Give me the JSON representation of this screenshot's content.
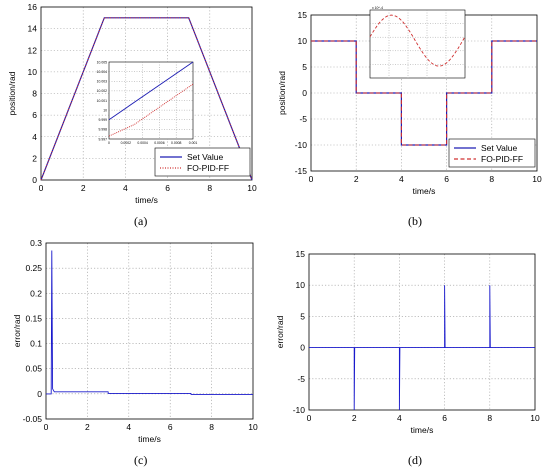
{
  "captions": [
    "(a)",
    "(b)",
    "(c)",
    "(d)"
  ],
  "colors": {
    "set_value": "#1f1fb4",
    "fopid": "#d03030",
    "error": "#1a1acc",
    "grid": "#9a9a9a"
  },
  "chart_data": [
    {
      "type": "line",
      "xlabel": "time/s",
      "ylabel": "position/rad",
      "xlim": [
        0,
        10
      ],
      "ylim": [
        0,
        16
      ],
      "xticks": [
        "0",
        "2",
        "4",
        "6",
        "8",
        "10"
      ],
      "yticks": [
        "0",
        "2",
        "4",
        "6",
        "8",
        "10",
        "12",
        "14",
        "16"
      ],
      "grid": "dotted",
      "legend": {
        "placement": "bottom-right"
      },
      "series": [
        {
          "name": "Set Value",
          "style": "solid",
          "x": [
            0,
            3,
            7,
            10
          ],
          "y": [
            0,
            15,
            15,
            0
          ]
        },
        {
          "name": "FO-PID-FF",
          "style": "dotted",
          "x": [
            0,
            3,
            7,
            10
          ],
          "y": [
            0,
            15,
            15,
            0
          ]
        }
      ],
      "inset": {
        "xticks": [
          "0",
          "0.0002",
          "0.0004",
          "0.0006",
          "0.0008",
          "0.001"
        ],
        "yticks": [
          "9.997",
          "9.998",
          "9.999",
          "10",
          "10.001",
          "10.002",
          "10.003",
          "10.004",
          "10.005"
        ],
        "xlim": [
          0,
          0.001
        ],
        "ylim": [
          9.997,
          10.005
        ],
        "series": [
          {
            "name": "Set Value",
            "x": [
              0,
              0.001
            ],
            "y": [
              9.999,
              10.005
            ]
          },
          {
            "name": "FO-PID-FF",
            "x": [
              0,
              0.0003,
              0.0006,
              0.001
            ],
            "y": [
              9.9973,
              9.9985,
              10.0003,
              10.0027
            ]
          }
        ]
      }
    },
    {
      "type": "line",
      "xlabel": "time/s",
      "ylabel": "position/rad",
      "xlim": [
        0,
        10
      ],
      "ylim": [
        -15,
        15
      ],
      "xticks": [
        "0",
        "2",
        "4",
        "6",
        "8",
        "10"
      ],
      "yticks": [
        "-15",
        "-10",
        "-5",
        "0",
        "5",
        "10",
        "15"
      ],
      "grid": "dotted",
      "legend": {
        "placement": "bottom-right"
      },
      "series": [
        {
          "name": "Set Value",
          "style": "solid",
          "x": [
            0,
            2,
            2,
            4,
            4,
            6,
            6,
            8,
            8,
            10
          ],
          "y": [
            10,
            10,
            0,
            0,
            -10,
            -10,
            0,
            0,
            10,
            10
          ]
        },
        {
          "name": "FO-PID-FF",
          "style": "dashed",
          "x": [
            0,
            2,
            2,
            4,
            4,
            6,
            6,
            8,
            8,
            10
          ],
          "y": [
            10,
            10,
            0,
            0,
            -10,
            -10,
            0,
            0,
            10,
            10
          ]
        }
      ],
      "inset": {
        "exponent": "x 10^-4",
        "xticks": [
          "",
          "",
          "",
          "",
          "",
          ""
        ],
        "yticks": [
          "",
          "",
          "",
          "",
          "",
          ""
        ],
        "series": [
          {
            "name": "FO-PID-FF",
            "x": [
              0,
              0.2,
              0.4,
              0.6,
              0.8,
              1
            ],
            "y": [
              0.2,
              0.8,
              0.55,
              -0.4,
              -0.6,
              0.3
            ]
          }
        ]
      }
    },
    {
      "type": "line",
      "xlabel": "time/s",
      "ylabel": "error/rad",
      "xlim": [
        0,
        10
      ],
      "ylim": [
        -0.05,
        0.3
      ],
      "xticks": [
        "0",
        "2",
        "4",
        "6",
        "8",
        "10"
      ],
      "yticks": [
        "-0.05",
        "0",
        "0.05",
        "0.1",
        "0.15",
        "0.2",
        "0.25",
        "0.3"
      ],
      "grid": "dotted",
      "series": [
        {
          "name": "error",
          "x": [
            0,
            0.25,
            0.28,
            0.32,
            0.4,
            3,
            3.01,
            7,
            7.01,
            10
          ],
          "y": [
            0,
            0,
            0.285,
            0.01,
            0.004,
            0.004,
            0.001,
            0.001,
            -0.001,
            -0.001
          ]
        }
      ]
    },
    {
      "type": "line",
      "xlabel": "time/s",
      "ylabel": "error/rad",
      "xlim": [
        0,
        10
      ],
      "ylim": [
        -10,
        15
      ],
      "xticks": [
        "0",
        "2",
        "4",
        "6",
        "8",
        "10"
      ],
      "yticks": [
        "-10",
        "-5",
        "0",
        "5",
        "10",
        "15"
      ],
      "grid": "dotted",
      "series": [
        {
          "name": "error",
          "x": [
            0,
            2,
            2,
            2.02,
            4,
            4,
            4.02,
            6,
            6,
            6.02,
            8,
            8,
            8.02,
            10
          ],
          "y": [
            0,
            0,
            -10,
            0,
            0,
            -10,
            0,
            0,
            10,
            0,
            0,
            10,
            0,
            0
          ]
        }
      ]
    }
  ]
}
